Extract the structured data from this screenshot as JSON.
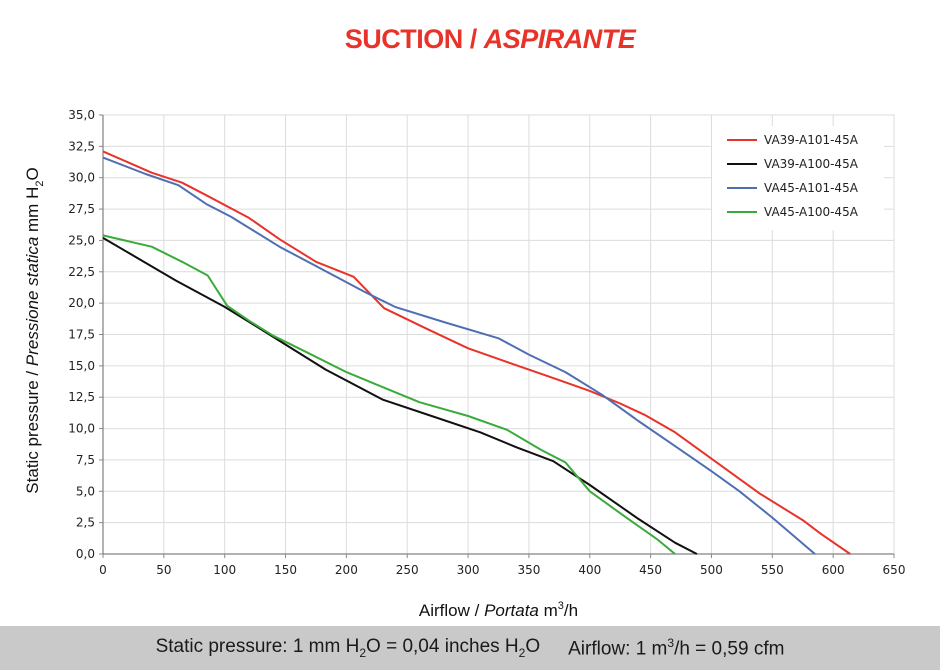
{
  "title": {
    "main": "SUCTION",
    "sep": " / ",
    "italic": "ASPIRANTE"
  },
  "footer": {
    "pressure": {
      "a": "Static pressure: 1 mm H",
      "sub1": "2",
      "b": "O = 0,04 inches H",
      "sub2": "2",
      "c": "O"
    },
    "airflow": {
      "a": "Airflow: 1 m",
      "sup": "3",
      "b": "/h = 0,59 cfm"
    }
  },
  "chart_data": {
    "type": "line",
    "xlabel": {
      "a": "Airflow / ",
      "italic": "Portata",
      "b": " m",
      "sup": "3",
      "c": "/h"
    },
    "ylabel": {
      "a": "Static pressure / ",
      "italic": "Pressione statica",
      "b": " mm H",
      "sub": "2",
      "c": "O"
    },
    "xlim": [
      0,
      650
    ],
    "ylim": [
      0,
      35
    ],
    "x_ticks": [
      "0",
      "50",
      "100",
      "150",
      "200",
      "250",
      "300",
      "350",
      "400",
      "450",
      "500",
      "550",
      "600",
      "650"
    ],
    "y_ticks": [
      "0,0",
      "2,5",
      "5,0",
      "7,5",
      "10,0",
      "12,5",
      "15,0",
      "17,5",
      "20,0",
      "22,5",
      "25,0",
      "27,5",
      "30,0",
      "32,5",
      "35,0"
    ],
    "grid": true,
    "legend_position": "top-right",
    "series": [
      {
        "name": "VA39-A101-45A",
        "color": "#e8332a",
        "points": [
          [
            0,
            32.1
          ],
          [
            40,
            30.4
          ],
          [
            65,
            29.6
          ],
          [
            85,
            28.6
          ],
          [
            120,
            26.8
          ],
          [
            145,
            25.1
          ],
          [
            175,
            23.3
          ],
          [
            206,
            22.1
          ],
          [
            231,
            19.6
          ],
          [
            265,
            18.0
          ],
          [
            300,
            16.4
          ],
          [
            335,
            15.2
          ],
          [
            365,
            14.2
          ],
          [
            400,
            13.0
          ],
          [
            425,
            12.0
          ],
          [
            445,
            11.1
          ],
          [
            470,
            9.7
          ],
          [
            500,
            7.6
          ],
          [
            540,
            4.8
          ],
          [
            575,
            2.7
          ],
          [
            590,
            1.6
          ],
          [
            614,
            0
          ]
        ]
      },
      {
        "name": "VA39-A100-45A",
        "color": "#111111",
        "points": [
          [
            0,
            25.2
          ],
          [
            30,
            23.5
          ],
          [
            60,
            21.8
          ],
          [
            100,
            19.7
          ],
          [
            140,
            17.3
          ],
          [
            183,
            14.7
          ],
          [
            230,
            12.3
          ],
          [
            270,
            11.0
          ],
          [
            310,
            9.7
          ],
          [
            340,
            8.5
          ],
          [
            370,
            7.4
          ],
          [
            400,
            5.5
          ],
          [
            440,
            2.8
          ],
          [
            470,
            0.9
          ],
          [
            488,
            0
          ]
        ]
      },
      {
        "name": "VA45-A101-45A",
        "color": "#4f6fb3",
        "points": [
          [
            0,
            31.6
          ],
          [
            35,
            30.3
          ],
          [
            62,
            29.4
          ],
          [
            85,
            27.9
          ],
          [
            105,
            26.9
          ],
          [
            145,
            24.5
          ],
          [
            180,
            22.7
          ],
          [
            215,
            20.9
          ],
          [
            240,
            19.7
          ],
          [
            280,
            18.5
          ],
          [
            325,
            17.2
          ],
          [
            350,
            15.9
          ],
          [
            380,
            14.5
          ],
          [
            410,
            12.7
          ],
          [
            440,
            10.6
          ],
          [
            470,
            8.6
          ],
          [
            500,
            6.6
          ],
          [
            523,
            5.0
          ],
          [
            550,
            2.9
          ],
          [
            585,
            0
          ]
        ]
      },
      {
        "name": "VA45-A100-45A",
        "color": "#3aab3a",
        "points": [
          [
            0,
            25.4
          ],
          [
            40,
            24.5
          ],
          [
            65,
            23.3
          ],
          [
            86,
            22.2
          ],
          [
            102,
            19.8
          ],
          [
            120,
            18.6
          ],
          [
            140,
            17.4
          ],
          [
            165,
            16.2
          ],
          [
            200,
            14.5
          ],
          [
            230,
            13.3
          ],
          [
            260,
            12.1
          ],
          [
            300,
            11.0
          ],
          [
            332,
            9.9
          ],
          [
            360,
            8.3
          ],
          [
            380,
            7.3
          ],
          [
            400,
            5.0
          ],
          [
            430,
            2.9
          ],
          [
            455,
            1.2
          ],
          [
            470,
            0
          ]
        ]
      }
    ]
  }
}
